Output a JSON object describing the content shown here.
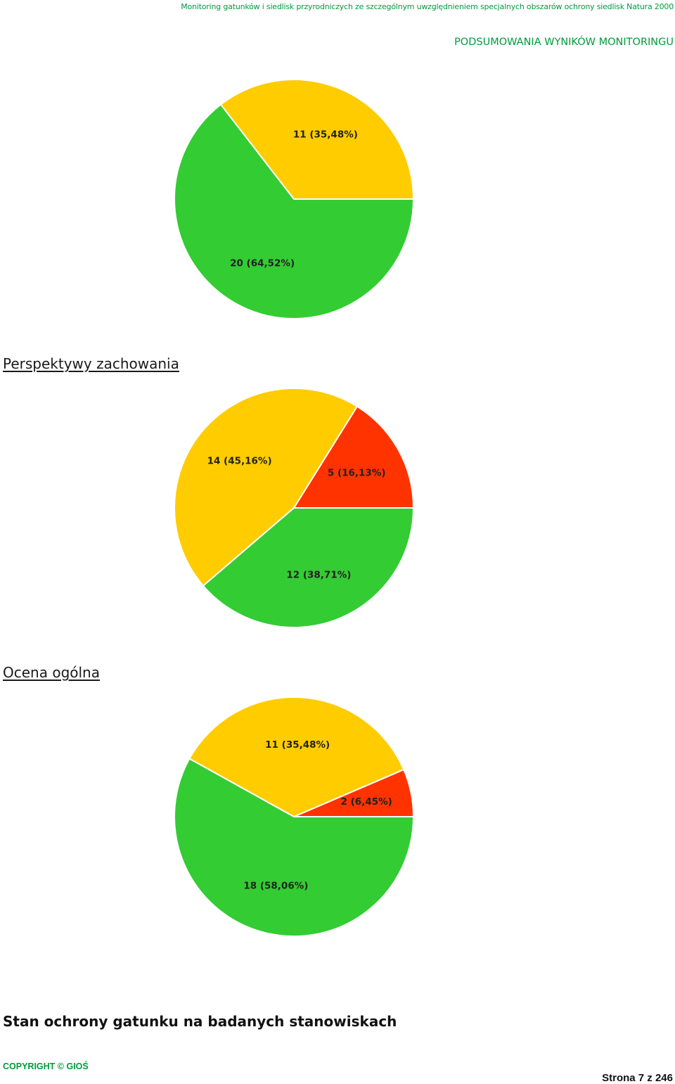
{
  "header": {
    "top_line": "Monitoring gatunków i siedlisk przyrodniczych ze szczególnym uwzględnieniem specjalnych obszarów ochrony siedlisk Natura 2000",
    "subtitle": "PODSUMOWANIA WYNIKÓW MONITORINGU"
  },
  "sections": {
    "perspektywy_title": "Perspektywy zachowania",
    "ocena_title": "Ocena ogólna",
    "stan_title": "Stan ochrony gatunku na badanych stanowiskach"
  },
  "footer": {
    "copyright": "COPYRIGHT © GIOŚ",
    "page": "Strona 7 z 246"
  },
  "chart_data": [
    {
      "type": "pie",
      "title": "",
      "slices": [
        {
          "label": "11 (35,48%)",
          "value": 11,
          "percent": 35.48,
          "color": "#ffcc00"
        },
        {
          "label": "20 (64,52%)",
          "value": 20,
          "percent": 64.52,
          "color": "#33cc33"
        }
      ]
    },
    {
      "type": "pie",
      "title": "Perspektywy zachowania",
      "slices": [
        {
          "label": "5 (16,13%)",
          "value": 5,
          "percent": 16.13,
          "color": "#ff3300"
        },
        {
          "label": "14 (45,16%)",
          "value": 14,
          "percent": 45.16,
          "color": "#ffcc00"
        },
        {
          "label": "12 (38,71%)",
          "value": 12,
          "percent": 38.71,
          "color": "#33cc33"
        }
      ]
    },
    {
      "type": "pie",
      "title": "Ocena ogólna",
      "slices": [
        {
          "label": "2 (6,45%)",
          "value": 2,
          "percent": 6.45,
          "color": "#ff3300"
        },
        {
          "label": "11 (35,48%)",
          "value": 11,
          "percent": 35.48,
          "color": "#ffcc00"
        },
        {
          "label": "18 (58,06%)",
          "value": 18,
          "percent": 58.06,
          "color": "#33cc33"
        }
      ]
    }
  ]
}
